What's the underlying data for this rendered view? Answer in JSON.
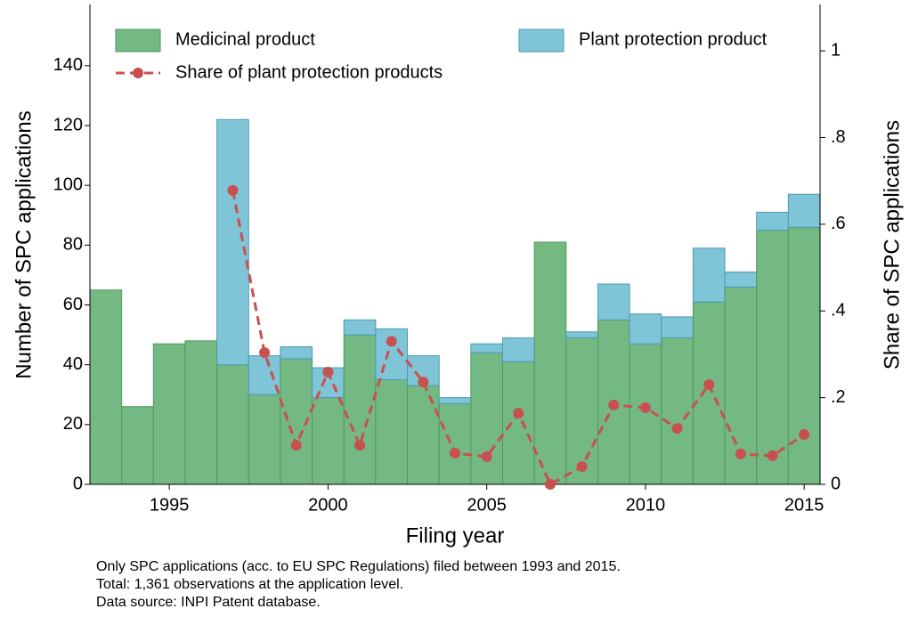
{
  "chart_data": {
    "type": "bar",
    "stacked": true,
    "xlabel": "Filing year",
    "ylabel": "Number of SPC applications",
    "y2label": "Share of SPC applications",
    "x": [
      1993,
      1994,
      1995,
      1996,
      1997,
      1998,
      1999,
      2000,
      2001,
      2002,
      2003,
      2004,
      2005,
      2006,
      2007,
      2008,
      2009,
      2010,
      2011,
      2012,
      2013,
      2014,
      2015
    ],
    "xlim": [
      1992.5,
      2015.5
    ],
    "xticks": [
      1995,
      2000,
      2005,
      2010,
      2015
    ],
    "ylim": [
      0,
      160.5
    ],
    "yticks": [
      0,
      20,
      40,
      60,
      80,
      100,
      120,
      140
    ],
    "y2lim": [
      0,
      1.107
    ],
    "y2ticks": [
      0,
      {
        "value": 0.2,
        "label": ".2"
      },
      {
        "value": 0.4,
        "label": ".4"
      },
      {
        "value": 0.6,
        "label": ".6"
      },
      {
        "value": 0.8,
        "label": ".8"
      },
      1
    ],
    "series": [
      {
        "name": "Medicinal product",
        "color": "#74b883",
        "values": [
          65,
          26,
          47,
          48,
          40,
          30,
          42,
          29,
          50,
          35,
          33,
          27,
          44,
          41,
          81,
          49,
          55,
          47,
          49,
          61,
          66,
          85,
          86
        ]
      },
      {
        "name": "Plant protection product",
        "color": "#80c4d7",
        "values": [
          0,
          0,
          0,
          0,
          82,
          13,
          4,
          10,
          5,
          17,
          10,
          2,
          3,
          8,
          0,
          2,
          12,
          10,
          7,
          18,
          5,
          6,
          11
        ]
      },
      {
        "name": "Share of plant protection products",
        "type": "line",
        "axis": "y2",
        "color": "#c8504f",
        "values": [
          null,
          null,
          null,
          null,
          0.678,
          0.304,
          0.09,
          0.259,
          0.09,
          0.33,
          0.236,
          0.072,
          0.064,
          0.164,
          0,
          0.041,
          0.183,
          0.177,
          0.129,
          0.23,
          0.07,
          0.066,
          0.115
        ]
      }
    ],
    "notes": [
      "Only SPC applications (acc. to EU SPC Regulations) filed between 1993 and 2015.",
      "Total: 1,361 observations at the application level.",
      "Data source: INPI Patent database."
    ]
  }
}
